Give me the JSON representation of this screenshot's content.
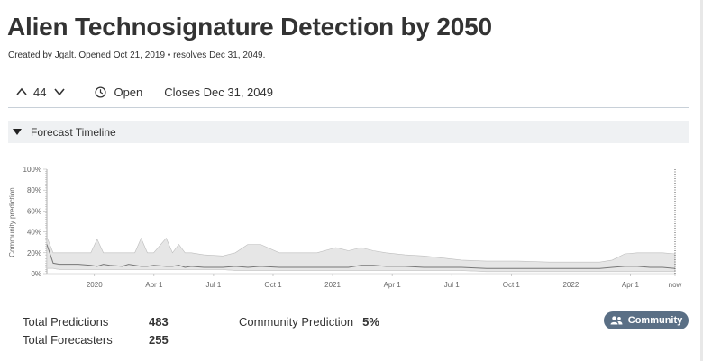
{
  "question": {
    "title": "Alien Technosignature Detection by 2050",
    "created_prefix": "Created by",
    "author": "Jgalt",
    "opened_text": ". Opened Oct 21, 2019 • resolves Dec 31, 2049."
  },
  "toolbar": {
    "vote_count": "44",
    "status_label": "Open",
    "closes_text": "Closes Dec 31, 2049",
    "icons": [
      "chevron-up-icon",
      "chevron-down-icon",
      "clock-icon"
    ]
  },
  "timeline": {
    "header_label": "Forecast Timeline"
  },
  "chart_data": {
    "type": "area",
    "ylabel": "Community prediction",
    "ylim": [
      0,
      100
    ],
    "y_ticks": [
      "0%",
      "20%",
      "40%",
      "60%",
      "80%",
      "100%"
    ],
    "x_ticks": [
      "2020",
      "Apr 1",
      "Jul 1",
      "Oct 1",
      "2021",
      "Apr 1",
      "Jul 1",
      "Oct 1",
      "2022",
      "Apr 1",
      "now"
    ],
    "x_tick_positions": [
      0.0757,
      0.1705,
      0.2653,
      0.3601,
      0.4549,
      0.5497,
      0.6445,
      0.7393,
      0.8341,
      0.9289,
      1.0
    ],
    "x": [
      0,
      0.01,
      0.02,
      0.05,
      0.07,
      0.08,
      0.09,
      0.1,
      0.12,
      0.13,
      0.14,
      0.15,
      0.16,
      0.17,
      0.19,
      0.2,
      0.21,
      0.22,
      0.23,
      0.25,
      0.28,
      0.3,
      0.32,
      0.34,
      0.37,
      0.4,
      0.43,
      0.46,
      0.48,
      0.5,
      0.52,
      0.54,
      0.57,
      0.6,
      0.63,
      0.66,
      0.7,
      0.75,
      0.8,
      0.85,
      0.88,
      0.9,
      0.92,
      0.94,
      0.96,
      0.98,
      1.0
    ],
    "series": [
      {
        "values": [
          28,
          10,
          9,
          9,
          8,
          7,
          9,
          8,
          7,
          9,
          8,
          7,
          7,
          8,
          7,
          7,
          8,
          6,
          7,
          6,
          6,
          7,
          6,
          7,
          6,
          6,
          6,
          6,
          6,
          8,
          8,
          7,
          7,
          6,
          6,
          6,
          5,
          5,
          5,
          5,
          5,
          6,
          7,
          7,
          6,
          6,
          5
        ],
        "upper": [
          35,
          20,
          20,
          20,
          20,
          33,
          20,
          20,
          20,
          20,
          20,
          34,
          20,
          20,
          34,
          20,
          28,
          20,
          20,
          18,
          17,
          20,
          28,
          28,
          20,
          20,
          20,
          25,
          22,
          25,
          22,
          20,
          18,
          17,
          15,
          13,
          12,
          12,
          11,
          11,
          11,
          13,
          19,
          20,
          20,
          20,
          19
        ],
        "lower": [
          5,
          5,
          4,
          4,
          4,
          4,
          4,
          4,
          4,
          4,
          4,
          4,
          4,
          4,
          4,
          4,
          4,
          4,
          4,
          4,
          4,
          3,
          3,
          3,
          3,
          3,
          3,
          3,
          3,
          3,
          3,
          3,
          3,
          3,
          3,
          3,
          2,
          2,
          2,
          2,
          2,
          2,
          2,
          2,
          2,
          2,
          2
        ]
      }
    ]
  },
  "stats": {
    "total_predictions_label": "Total Predictions",
    "total_predictions": "483",
    "total_forecasters_label": "Total Forecasters",
    "total_forecasters": "255",
    "community_prediction_label": "Community Prediction",
    "community_prediction": "5%"
  },
  "community_button": {
    "label": "Community",
    "icon": "users-icon"
  }
}
